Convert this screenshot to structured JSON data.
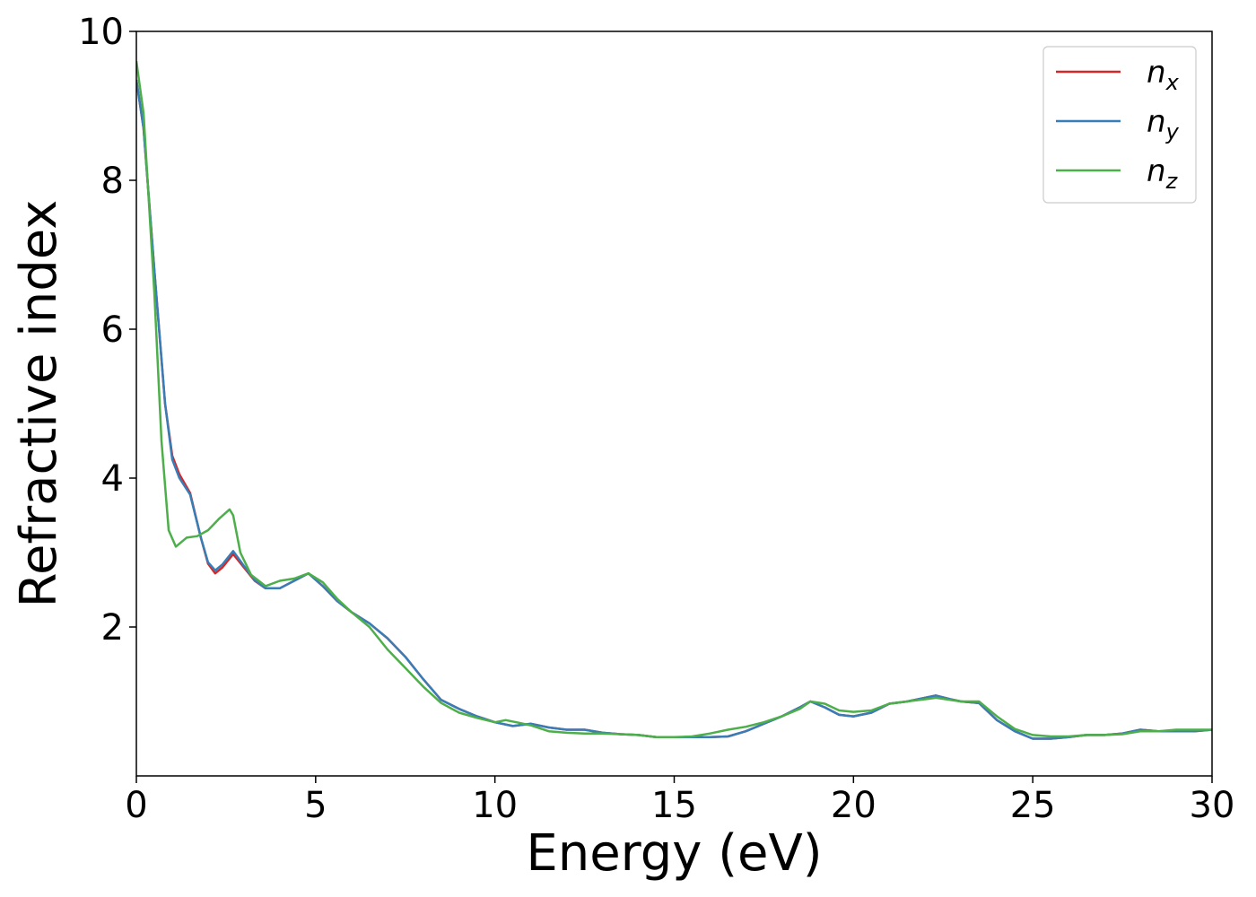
{
  "chart_data": {
    "type": "line",
    "xlabel": "Energy (eV)",
    "ylabel": "Refractive index",
    "xlim": [
      0,
      30
    ],
    "ylim": [
      0,
      10
    ],
    "xticks": [
      0,
      5,
      10,
      15,
      20,
      25,
      30
    ],
    "xtick_labels": [
      "0",
      "5",
      "10",
      "15",
      "20",
      "25",
      "30"
    ],
    "yticks": [
      2,
      4,
      6,
      8,
      10
    ],
    "ytick_labels": [
      "2",
      "4",
      "6",
      "8",
      "10"
    ],
    "grid": false,
    "legend_position": "top-right",
    "series": [
      {
        "name": "n_x",
        "label_base": "n",
        "label_sub": "x",
        "color": "#d62728",
        "x": [
          0,
          0.2,
          0.5,
          0.8,
          1.0,
          1.2,
          1.5,
          1.8,
          2.0,
          2.2,
          2.4,
          2.7,
          3.0,
          3.3,
          3.6,
          4.0,
          4.4,
          4.8,
          5.2,
          5.6,
          6.0,
          6.5,
          7.0,
          7.5,
          8.0,
          8.5,
          9.0,
          9.5,
          10.0,
          10.5,
          11.0,
          11.5,
          12.0,
          12.5,
          13.0,
          13.5,
          14.0,
          14.5,
          15.0,
          15.5,
          16.0,
          16.5,
          17.0,
          17.5,
          18.0,
          18.5,
          18.8,
          19.2,
          19.6,
          20.0,
          20.5,
          21.0,
          21.5,
          22.0,
          22.3,
          22.7,
          23.0,
          23.5,
          24.0,
          24.5,
          25.0,
          25.5,
          26.0,
          26.5,
          27.0,
          27.5,
          28.0,
          28.5,
          29.0,
          29.5,
          30.0
        ],
        "y": [
          9.35,
          8.7,
          6.8,
          5.0,
          4.3,
          4.05,
          3.8,
          3.2,
          2.85,
          2.72,
          2.8,
          2.98,
          2.8,
          2.62,
          2.52,
          2.52,
          2.62,
          2.72,
          2.55,
          2.35,
          2.2,
          2.05,
          1.85,
          1.6,
          1.3,
          1.02,
          0.9,
          0.8,
          0.72,
          0.67,
          0.7,
          0.65,
          0.62,
          0.62,
          0.58,
          0.56,
          0.55,
          0.52,
          0.52,
          0.52,
          0.52,
          0.53,
          0.6,
          0.7,
          0.8,
          0.92,
          1.0,
          0.92,
          0.82,
          0.8,
          0.85,
          0.97,
          1.0,
          1.05,
          1.08,
          1.03,
          1.0,
          0.98,
          0.75,
          0.6,
          0.5,
          0.5,
          0.52,
          0.55,
          0.55,
          0.57,
          0.62,
          0.6,
          0.6,
          0.6,
          0.62
        ]
      },
      {
        "name": "n_y",
        "label_base": "n",
        "label_sub": "y",
        "color": "#377eb8",
        "x": [
          0,
          0.2,
          0.5,
          0.8,
          1.0,
          1.2,
          1.5,
          1.8,
          2.0,
          2.2,
          2.4,
          2.7,
          3.0,
          3.3,
          3.6,
          4.0,
          4.4,
          4.8,
          5.2,
          5.6,
          6.0,
          6.5,
          7.0,
          7.5,
          8.0,
          8.5,
          9.0,
          9.5,
          10.0,
          10.5,
          11.0,
          11.5,
          12.0,
          12.5,
          13.0,
          13.5,
          14.0,
          14.5,
          15.0,
          15.5,
          16.0,
          16.5,
          17.0,
          17.5,
          18.0,
          18.5,
          18.8,
          19.2,
          19.6,
          20.0,
          20.5,
          21.0,
          21.5,
          22.0,
          22.3,
          22.7,
          23.0,
          23.5,
          24.0,
          24.5,
          25.0,
          25.5,
          26.0,
          26.5,
          27.0,
          27.5,
          28.0,
          28.5,
          29.0,
          29.5,
          30.0
        ],
        "y": [
          9.35,
          8.7,
          6.8,
          5.0,
          4.25,
          4.0,
          3.78,
          3.2,
          2.87,
          2.76,
          2.84,
          3.02,
          2.82,
          2.63,
          2.52,
          2.52,
          2.62,
          2.72,
          2.55,
          2.35,
          2.2,
          2.05,
          1.85,
          1.6,
          1.3,
          1.02,
          0.9,
          0.8,
          0.72,
          0.67,
          0.7,
          0.65,
          0.62,
          0.62,
          0.58,
          0.56,
          0.55,
          0.52,
          0.52,
          0.52,
          0.52,
          0.53,
          0.6,
          0.7,
          0.8,
          0.92,
          1.0,
          0.92,
          0.82,
          0.8,
          0.85,
          0.97,
          1.0,
          1.05,
          1.08,
          1.03,
          1.0,
          0.98,
          0.75,
          0.6,
          0.5,
          0.5,
          0.52,
          0.55,
          0.55,
          0.57,
          0.62,
          0.6,
          0.6,
          0.6,
          0.62
        ]
      },
      {
        "name": "n_z",
        "label_base": "n",
        "label_sub": "z",
        "color": "#4daf4a",
        "x": [
          0,
          0.2,
          0.5,
          0.7,
          0.9,
          1.1,
          1.4,
          1.7,
          2.0,
          2.3,
          2.6,
          2.7,
          2.9,
          3.2,
          3.6,
          4.0,
          4.4,
          4.8,
          5.2,
          5.6,
          6.0,
          6.5,
          7.0,
          7.5,
          8.0,
          8.5,
          9.0,
          9.5,
          10.0,
          10.3,
          10.6,
          11.0,
          11.5,
          12.0,
          12.5,
          13.0,
          13.5,
          14.0,
          14.5,
          15.0,
          15.5,
          16.0,
          16.5,
          17.0,
          17.5,
          18.0,
          18.5,
          18.8,
          19.2,
          19.6,
          20.0,
          20.5,
          21.0,
          21.5,
          22.0,
          22.3,
          22.7,
          23.0,
          23.5,
          24.0,
          24.5,
          25.0,
          25.5,
          26.0,
          26.5,
          27.0,
          27.5,
          28.0,
          28.5,
          29.0,
          29.5,
          30.0
        ],
        "y": [
          9.6,
          8.9,
          6.5,
          4.5,
          3.3,
          3.08,
          3.2,
          3.22,
          3.3,
          3.45,
          3.58,
          3.5,
          3.0,
          2.7,
          2.55,
          2.62,
          2.65,
          2.72,
          2.6,
          2.38,
          2.2,
          2.0,
          1.7,
          1.45,
          1.2,
          0.98,
          0.85,
          0.78,
          0.72,
          0.75,
          0.72,
          0.68,
          0.6,
          0.58,
          0.57,
          0.57,
          0.56,
          0.55,
          0.52,
          0.52,
          0.53,
          0.57,
          0.62,
          0.66,
          0.72,
          0.8,
          0.9,
          1.0,
          0.97,
          0.88,
          0.86,
          0.88,
          0.97,
          1.0,
          1.03,
          1.05,
          1.02,
          1.0,
          1.0,
          0.8,
          0.63,
          0.55,
          0.53,
          0.53,
          0.55,
          0.55,
          0.56,
          0.6,
          0.6,
          0.62,
          0.62,
          0.62
        ]
      }
    ]
  }
}
